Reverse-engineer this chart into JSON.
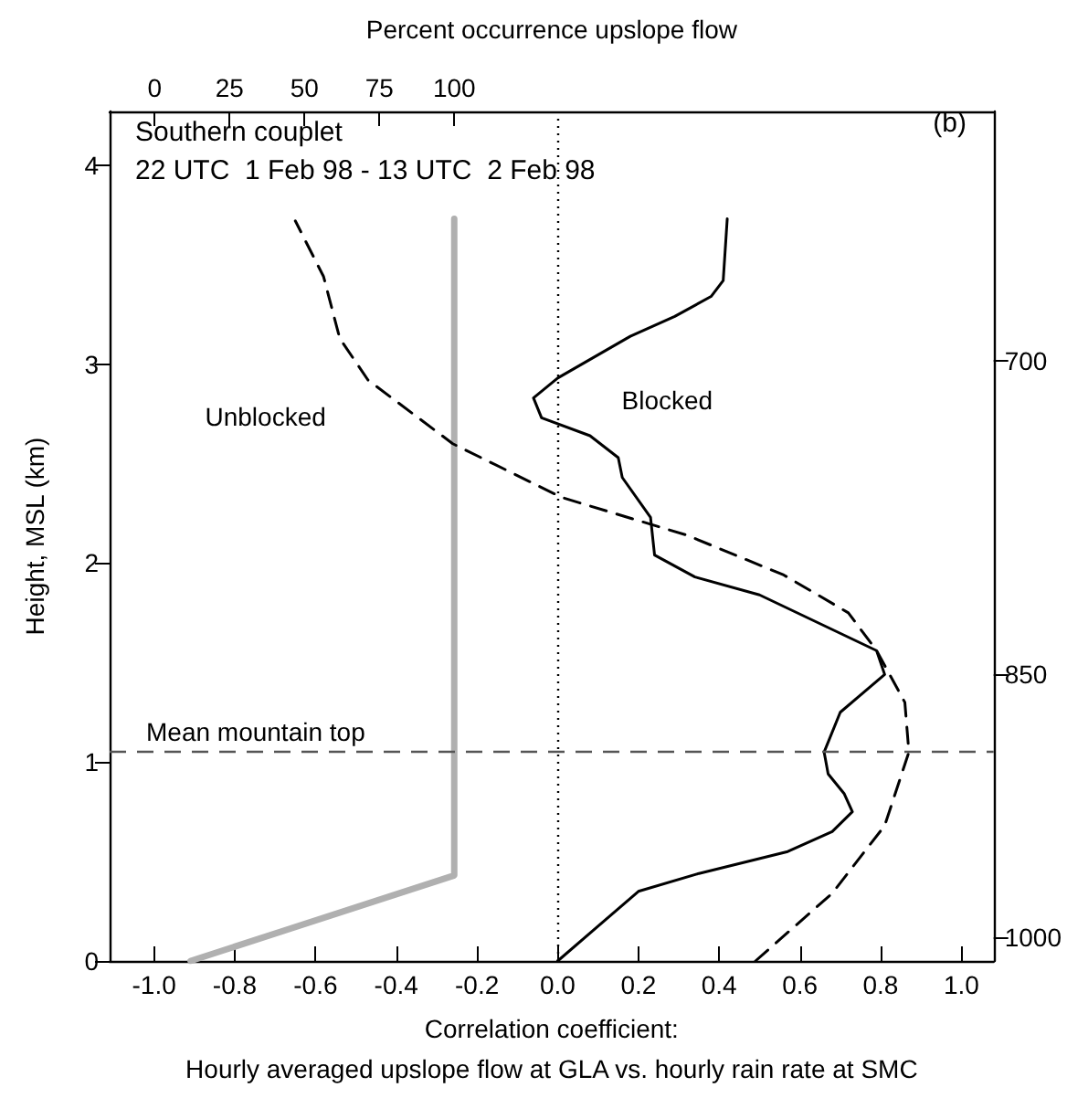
{
  "chart_data": {
    "type": "line",
    "title": "Southern couplet",
    "subtitle": "22 UTC  1 Feb 98 - 13 UTC  2 Feb 98",
    "xlabel": "Correlation coefficient:\nHourly averaged upslope flow at GLA vs. hourly rain rate at SMC",
    "ylabel": "Height, MSL (km)",
    "x2label": "Percent occurrence upslope flow",
    "annotations": [
      "(b)"
    ],
    "xlim": [
      -1.11,
      1.08
    ],
    "xticks": [
      {
        "value": -1,
        "label": "-1.0"
      },
      {
        "value": -0.8,
        "label": "-0.8"
      },
      {
        "value": -0.6,
        "label": "-0.6"
      },
      {
        "value": -0.4,
        "label": "-0.4"
      },
      {
        "value": -0.2,
        "label": "-0.2"
      },
      {
        "value": 0,
        "label": "0.0"
      },
      {
        "value": 0.2,
        "label": "0.2"
      },
      {
        "value": 0.4,
        "label": "0.4"
      },
      {
        "value": 0.6,
        "label": "0.6"
      },
      {
        "value": 0.8,
        "label": "0.8"
      },
      {
        "value": 1,
        "label": "1.0"
      }
    ],
    "x2lim": [
      -15,
      280
    ],
    "x2ticks": [
      0,
      25,
      50,
      75,
      100
    ],
    "ylim": [
      0,
      4.27
    ],
    "yticks": [
      0,
      1,
      2,
      3,
      4
    ],
    "y2lim": [
      1015,
      600
    ],
    "y2ticks": [
      700,
      850,
      1000
    ],
    "log": "y2",
    "grid": false,
    "legend": false,
    "marker": "none",
    "series": [
      {
        "name": "Blocked",
        "color": "#000000",
        "line_style": "solid",
        "x": [
          0,
          0.2,
          0.35,
          0.57,
          0.68,
          0.73,
          0.71,
          0.67,
          0.66,
          0.7,
          0.81,
          0.79,
          0.5,
          0.34,
          0.24,
          0.23,
          0.16,
          0.15,
          0.08,
          -0.04,
          -0.06,
          0,
          0.18,
          0.29,
          0.38,
          0.41,
          0.42
        ],
        "values": [
          0,
          0.35,
          0.44,
          0.55,
          0.65,
          0.75,
          0.84,
          0.94,
          1.05,
          1.25,
          1.44,
          1.56,
          1.84,
          1.93,
          2.04,
          2.23,
          2.43,
          2.53,
          2.64,
          2.73,
          2.83,
          2.93,
          3.14,
          3.24,
          3.34,
          3.42,
          3.73
        ]
      },
      {
        "name": "Unblocked",
        "color": "#000000",
        "line_style": "dashed",
        "x": [
          0.49,
          0.68,
          0.81,
          0.87,
          0.86,
          0.79,
          0.72,
          0.56,
          0.32,
          0.01,
          -0.26,
          -0.47,
          -0.54,
          -0.58,
          -0.65
        ],
        "values": [
          0,
          0.34,
          0.68,
          1.05,
          1.3,
          1.56,
          1.75,
          1.94,
          2.14,
          2.33,
          2.6,
          2.92,
          3.13,
          3.44,
          3.72
        ]
      },
      {
        "color": "#b0b0b0",
        "line_style": "solid",
        "axis": "x2",
        "x": [
          12,
          100,
          100
        ],
        "values": [
          0,
          0.43,
          3.73
        ]
      }
    ],
    "ref_lines": [
      {
        "axis": "y",
        "value": 1.05,
        "label": "Mean mountain top",
        "color": "#555555",
        "line_style": "dashed"
      },
      {
        "axis": "x",
        "value": 0,
        "color": "#000000",
        "line_style": "dotted"
      }
    ]
  }
}
